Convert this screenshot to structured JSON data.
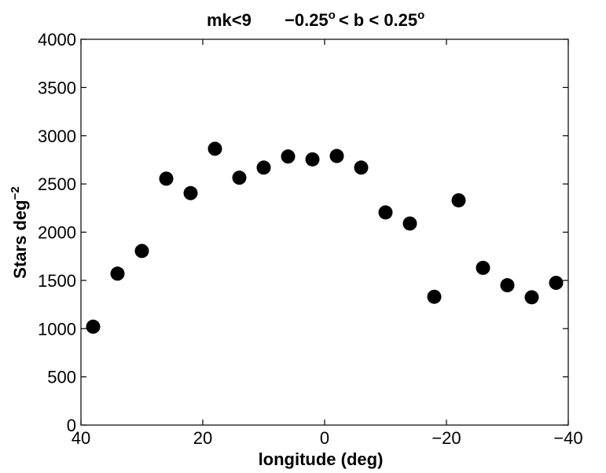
{
  "chart_data": {
    "type": "scatter",
    "title_left": "mk<9",
    "title_right": {
      "minus": "−0.25",
      "sup1": "o",
      "mid": "< b < 0.25",
      "sup2": "o"
    },
    "xlabel": "longitude (deg)",
    "ylabel": {
      "main": "Stars deg",
      "sup": "−2"
    },
    "xlim": [
      40,
      -40
    ],
    "ylim": [
      0,
      4000
    ],
    "x_reversed": true,
    "grid": false,
    "xticks": [
      40,
      20,
      0,
      -20,
      -40
    ],
    "xtick_labels": [
      "40",
      "20",
      "0",
      "−20",
      "−40"
    ],
    "yticks": [
      0,
      500,
      1000,
      1500,
      2000,
      2500,
      3000,
      3500,
      4000
    ],
    "ytick_labels": [
      "0",
      "500",
      "1000",
      "1500",
      "2000",
      "2500",
      "3000",
      "3500",
      "4000"
    ],
    "marker_color": "#000000",
    "points": [
      {
        "x": 38,
        "y": 1020
      },
      {
        "x": 34,
        "y": 1570
      },
      {
        "x": 30,
        "y": 1805
      },
      {
        "x": 26,
        "y": 2555
      },
      {
        "x": 22,
        "y": 2405
      },
      {
        "x": 18,
        "y": 2865
      },
      {
        "x": 14,
        "y": 2565
      },
      {
        "x": 10,
        "y": 2670
      },
      {
        "x": 6,
        "y": 2785
      },
      {
        "x": 2,
        "y": 2755
      },
      {
        "x": -2,
        "y": 2790
      },
      {
        "x": -6,
        "y": 2670
      },
      {
        "x": -10,
        "y": 2205
      },
      {
        "x": -14,
        "y": 2090
      },
      {
        "x": -18,
        "y": 1330
      },
      {
        "x": -22,
        "y": 2330
      },
      {
        "x": -26,
        "y": 1630
      },
      {
        "x": -30,
        "y": 1450
      },
      {
        "x": -34,
        "y": 1325
      },
      {
        "x": -38,
        "y": 1475
      }
    ]
  }
}
